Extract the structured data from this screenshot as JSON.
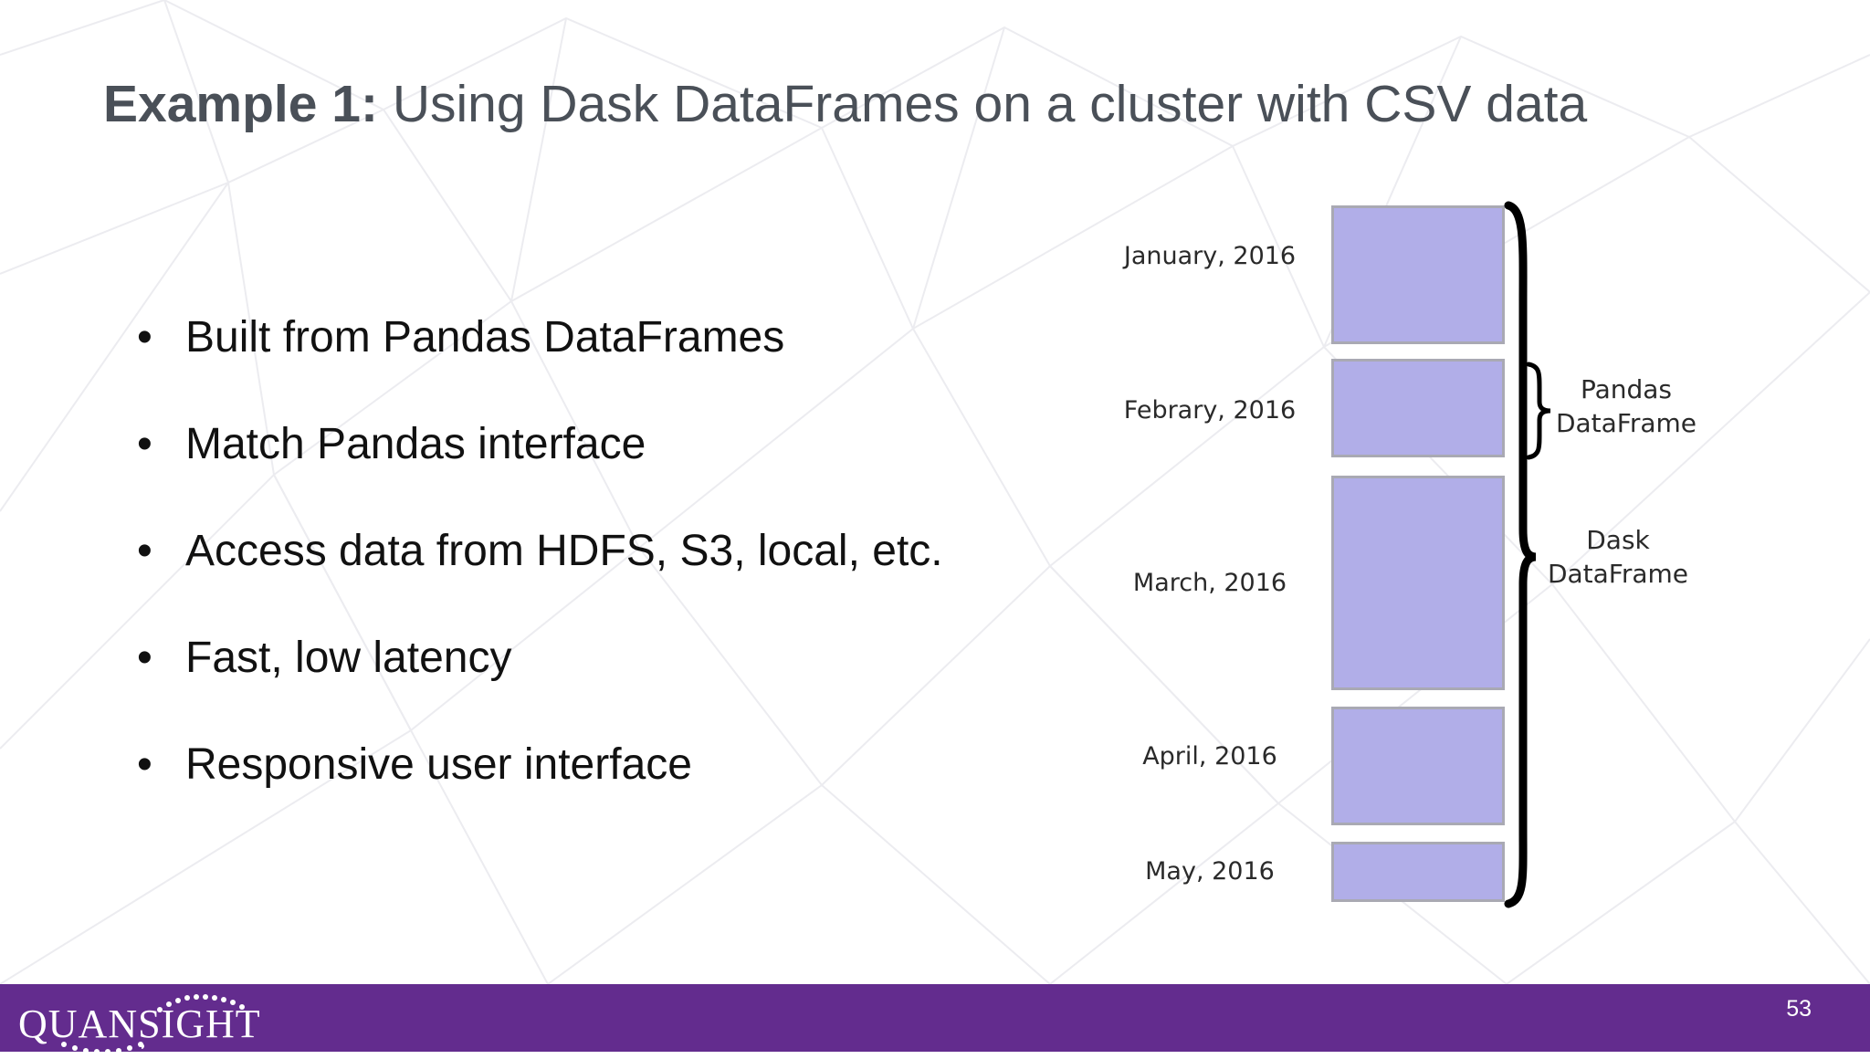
{
  "slide": {
    "title_bold": "Example 1:",
    "title_rest": " Using Dask DataFrames on a cluster with CSV data",
    "bullets": [
      "Built from Pandas DataFrames",
      "Match Pandas interface",
      "Access data from HDFS, S3, local, etc.",
      "Fast, low latency",
      "Responsive user interface"
    ],
    "bullet_symbol": "•",
    "page_number": "53"
  },
  "diagram": {
    "partitions": [
      "January, 2016",
      "Febrary, 2016",
      "March, 2016",
      "April, 2016",
      "May, 2016"
    ],
    "pandas_label": [
      "Pandas",
      "DataFrame"
    ],
    "dask_label": [
      "Dask",
      "DataFrame"
    ],
    "partition_color": "#b1aee8"
  },
  "footer": {
    "logo_text": "QUANSIGHT",
    "color": "#632c8e"
  }
}
